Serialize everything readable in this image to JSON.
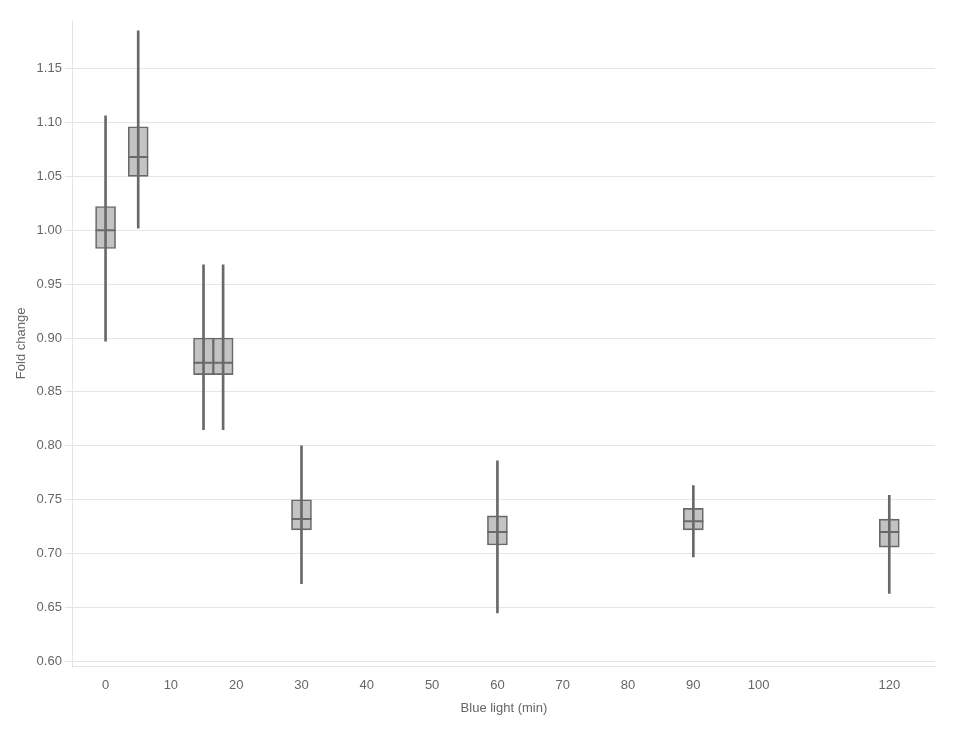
{
  "chart_data": {
    "type": "box",
    "xlabel": "Blue light (min)",
    "ylabel": "Fold change",
    "x": [
      0,
      5,
      15,
      18,
      30,
      60,
      90,
      120
    ],
    "whisker_low": [
      0.897,
      1.002,
      0.815,
      0.815,
      0.672,
      0.645,
      0.697,
      0.663
    ],
    "q1": [
      0.983,
      1.05,
      0.866,
      0.866,
      0.722,
      0.708,
      0.722,
      0.706
    ],
    "median": [
      1.0,
      1.068,
      0.877,
      0.877,
      0.732,
      0.72,
      0.73,
      0.72
    ],
    "q3": [
      1.022,
      1.096,
      0.9,
      0.9,
      0.75,
      0.735,
      0.742,
      0.732
    ],
    "whisker_high": [
      1.106,
      1.185,
      0.968,
      0.968,
      0.8,
      0.786,
      0.763,
      0.754
    ],
    "color": "#696969",
    "xlim": [
      -5,
      127
    ],
    "ylim": [
      0.595,
      1.195
    ],
    "xticks": [
      0,
      10,
      20,
      30,
      40,
      50,
      60,
      70,
      80,
      90,
      100,
      120
    ],
    "yticks": [
      {
        "value": 0.6,
        "label": "0.60"
      },
      0.65,
      {
        "value": 0.7,
        "label": "0.70"
      },
      0.75,
      {
        "value": 0.8,
        "label": "0.80"
      },
      0.85,
      {
        "value": 0.9,
        "label": "0.90"
      },
      0.95,
      {
        "value": 1.0,
        "label": "1.00"
      },
      1.05,
      {
        "value": 1.1,
        "label": "1.10"
      },
      1.15
    ],
    "grid": "y"
  }
}
